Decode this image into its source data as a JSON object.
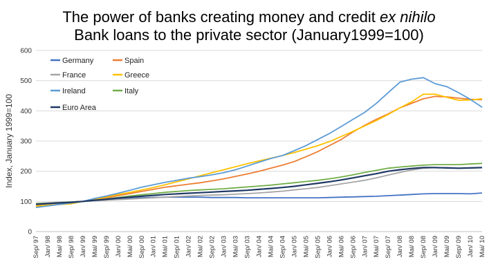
{
  "chart_data": {
    "type": "line",
    "title": {
      "line1_prefix": "The power of banks creating money and credit ",
      "line1_italic": "ex nihilo",
      "line2": "Bank loans to the private sector (January1999=100)"
    },
    "ylabel": "Index, January 1999=100",
    "xlabel": "",
    "ylim": [
      0,
      600
    ],
    "yticks": [
      0,
      100,
      200,
      300,
      400,
      500,
      600
    ],
    "grid": true,
    "legend_position": "top-left",
    "x_start_label": "Sep/ 97",
    "xticks": [
      "Sep/ 97",
      "Jan/ 98",
      "Mai/ 98",
      "Sep/ 98",
      "Jan/ 99",
      "Mai/ 99",
      "Sep/ 99",
      "Jan/ 00",
      "Mai/ 00",
      "Sep/ 00",
      "Jan/ 01",
      "Mai/ 01",
      "Sep/ 01",
      "Jan/ 02",
      "Mai/ 02",
      "Sep/ 02",
      "Jan/ 03",
      "Mai/ 03",
      "Sep/ 03",
      "Jan/ 04",
      "Mai/ 04",
      "Sep/ 04",
      "Jan/ 05",
      "Mai/ 05",
      "Sep/ 05",
      "Jan/ 06",
      "Mai/ 06",
      "Sep/ 06",
      "Jan/ 07",
      "Mai/ 07",
      "Sep/ 07",
      "Jan/ 08",
      "Mai/ 08",
      "Sep/ 08",
      "Jan/ 09",
      "Mai/ 09",
      "Sep/ 09",
      "Jan/ 10",
      "Mai/ 10"
    ],
    "series": [
      {
        "name": "Germany",
        "color": "#4472C4",
        "values": [
          90,
          92,
          95,
          98,
          100,
          103,
          106,
          108,
          110,
          112,
          113,
          114,
          114,
          114,
          114,
          113,
          113,
          113,
          112,
          112,
          112,
          112,
          112,
          112,
          112,
          113,
          114,
          115,
          116,
          117,
          119,
          121,
          123,
          125,
          126,
          126,
          126,
          125,
          128
        ]
      },
      {
        "name": "Spain",
        "color": "#ED7D31",
        "values": [
          82,
          86,
          90,
          95,
          100,
          106,
          112,
          119,
          126,
          133,
          140,
          147,
          152,
          157,
          162,
          168,
          175,
          183,
          191,
          200,
          210,
          220,
          232,
          248,
          265,
          285,
          305,
          330,
          352,
          372,
          390,
          410,
          425,
          440,
          448,
          446,
          442,
          438,
          437
        ]
      },
      {
        "name": "France",
        "color": "#A5A5A5",
        "values": [
          94,
          95,
          97,
          98,
          100,
          102,
          104,
          106,
          108,
          110,
          112,
          114,
          116,
          118,
          120,
          121,
          122,
          124,
          126,
          128,
          131,
          134,
          138,
          142,
          146,
          152,
          158,
          164,
          170,
          178,
          187,
          196,
          204,
          210,
          212,
          212,
          210,
          211,
          212
        ]
      },
      {
        "name": "Greece",
        "color": "#FFC000",
        "values": [
          85,
          88,
          90,
          92,
          100,
          107,
          115,
          123,
          130,
          138,
          146,
          155,
          165,
          175,
          185,
          195,
          205,
          215,
          225,
          234,
          243,
          252,
          262,
          273,
          285,
          298,
          315,
          332,
          350,
          368,
          388,
          410,
          430,
          455,
          455,
          445,
          435,
          436,
          440
        ]
      },
      {
        "name": "Ireland",
        "color": "#5B9BD5",
        "values": [
          80,
          85,
          90,
          95,
          100,
          110,
          118,
          127,
          137,
          147,
          155,
          163,
          170,
          177,
          182,
          188,
          195,
          205,
          217,
          230,
          242,
          252,
          268,
          285,
          305,
          325,
          348,
          372,
          395,
          425,
          460,
          495,
          505,
          510,
          490,
          480,
          460,
          438,
          412
        ]
      },
      {
        "name": "Italy",
        "color": "#70AD47",
        "values": [
          92,
          94,
          96,
          98,
          100,
          104,
          108,
          113,
          118,
          122,
          126,
          130,
          133,
          136,
          138,
          140,
          142,
          145,
          148,
          151,
          154,
          158,
          162,
          166,
          170,
          175,
          181,
          188,
          196,
          203,
          210,
          214,
          217,
          220,
          222,
          222,
          222,
          224,
          226
        ]
      },
      {
        "name": "Euro Area",
        "color": "#1F3864",
        "values": [
          90,
          93,
          95,
          97,
          100,
          104,
          107,
          111,
          114,
          117,
          120,
          123,
          125,
          127,
          129,
          131,
          133,
          135,
          137,
          140,
          143,
          146,
          150,
          155,
          160,
          165,
          171,
          178,
          185,
          192,
          200,
          205,
          209,
          212,
          212,
          211,
          210,
          211,
          212
        ]
      }
    ]
  }
}
